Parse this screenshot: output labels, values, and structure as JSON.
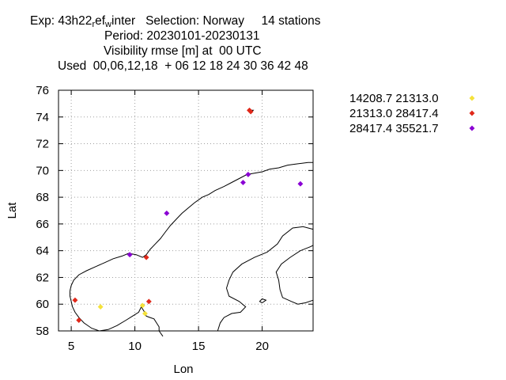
{
  "chart_data": {
    "type": "scatter",
    "title": {
      "line1_prefix": "Exp: 43h22",
      "line1_sub1": "r",
      "line1_mid": "ef",
      "line1_sub2": "w",
      "line1_suffix": "inter   Selection: Norway     14 stations",
      "line2": "Period: 20230101-20230131",
      "line3": "Visibility rmse [m] at  00 UTC",
      "line4": "Used  00,06,12,18  + 06 12 18 24 30 36 42 48"
    },
    "xlabel": "Lon",
    "ylabel": "Lat",
    "xlim": [
      4,
      24
    ],
    "ylim": [
      58,
      76
    ],
    "xticks": [
      5,
      10,
      15,
      20
    ],
    "yticks": [
      58,
      60,
      62,
      64,
      66,
      68,
      70,
      72,
      74,
      76
    ],
    "grid": true,
    "legend_position": "right",
    "series": [
      {
        "name": "14208.7 21313.0",
        "color": "#f5e23a",
        "points": [
          [
            7.3,
            59.8
          ],
          [
            10.6,
            59.9
          ],
          [
            10.8,
            59.3
          ]
        ]
      },
      {
        "name": "21313.0 28417.4",
        "color": "#e0281a",
        "points": [
          [
            5.3,
            60.3
          ],
          [
            5.6,
            58.8
          ],
          [
            10.9,
            63.5
          ],
          [
            11.1,
            60.2
          ],
          [
            19.0,
            74.5
          ],
          [
            19.1,
            74.4
          ]
        ]
      },
      {
        "name": "28417.4 35521.7",
        "color": "#8a00d4",
        "points": [
          [
            9.6,
            63.7
          ],
          [
            12.5,
            66.8
          ],
          [
            18.5,
            69.1
          ],
          [
            18.9,
            69.7
          ],
          [
            23.0,
            69.0
          ]
        ]
      }
    ]
  }
}
